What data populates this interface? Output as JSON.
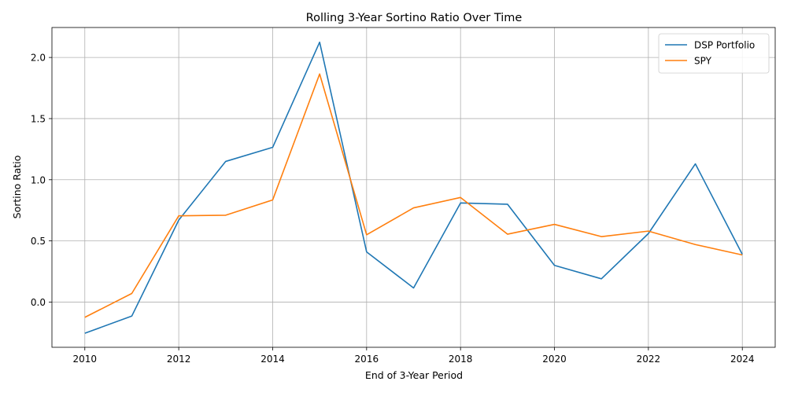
{
  "chart_data": {
    "type": "line",
    "title": "Rolling 3-Year Sortino Ratio Over Time",
    "xlabel": "End of 3-Year Period",
    "ylabel": "Sortino Ratio",
    "x": [
      2010,
      2011,
      2012,
      2013,
      2014,
      2015,
      2016,
      2017,
      2018,
      2019,
      2020,
      2021,
      2022,
      2023,
      2024
    ],
    "xlim": [
      2009.3,
      2024.7
    ],
    "ylim": [
      -0.37,
      2.245
    ],
    "xticks": [
      2010,
      2012,
      2014,
      2016,
      2018,
      2020,
      2022,
      2024
    ],
    "yticks": [
      0.0,
      0.5,
      1.0,
      1.5,
      2.0
    ],
    "ytick_labels": [
      "0.0",
      "0.5",
      "1.0",
      "1.5",
      "2.0"
    ],
    "grid": true,
    "legend_position": "top-right",
    "series": [
      {
        "name": "DSP Portfolio",
        "color": "#1f77b4",
        "values": [
          -0.255,
          -0.115,
          0.67,
          1.15,
          1.265,
          2.125,
          0.41,
          0.115,
          0.81,
          0.8,
          0.3,
          0.19,
          0.56,
          1.13,
          0.39
        ]
      },
      {
        "name": "SPY",
        "color": "#ff7f0e",
        "values": [
          -0.125,
          0.07,
          0.705,
          0.71,
          0.835,
          1.865,
          0.55,
          0.77,
          0.855,
          0.555,
          0.635,
          0.535,
          0.58,
          0.47,
          0.385
        ]
      }
    ]
  }
}
